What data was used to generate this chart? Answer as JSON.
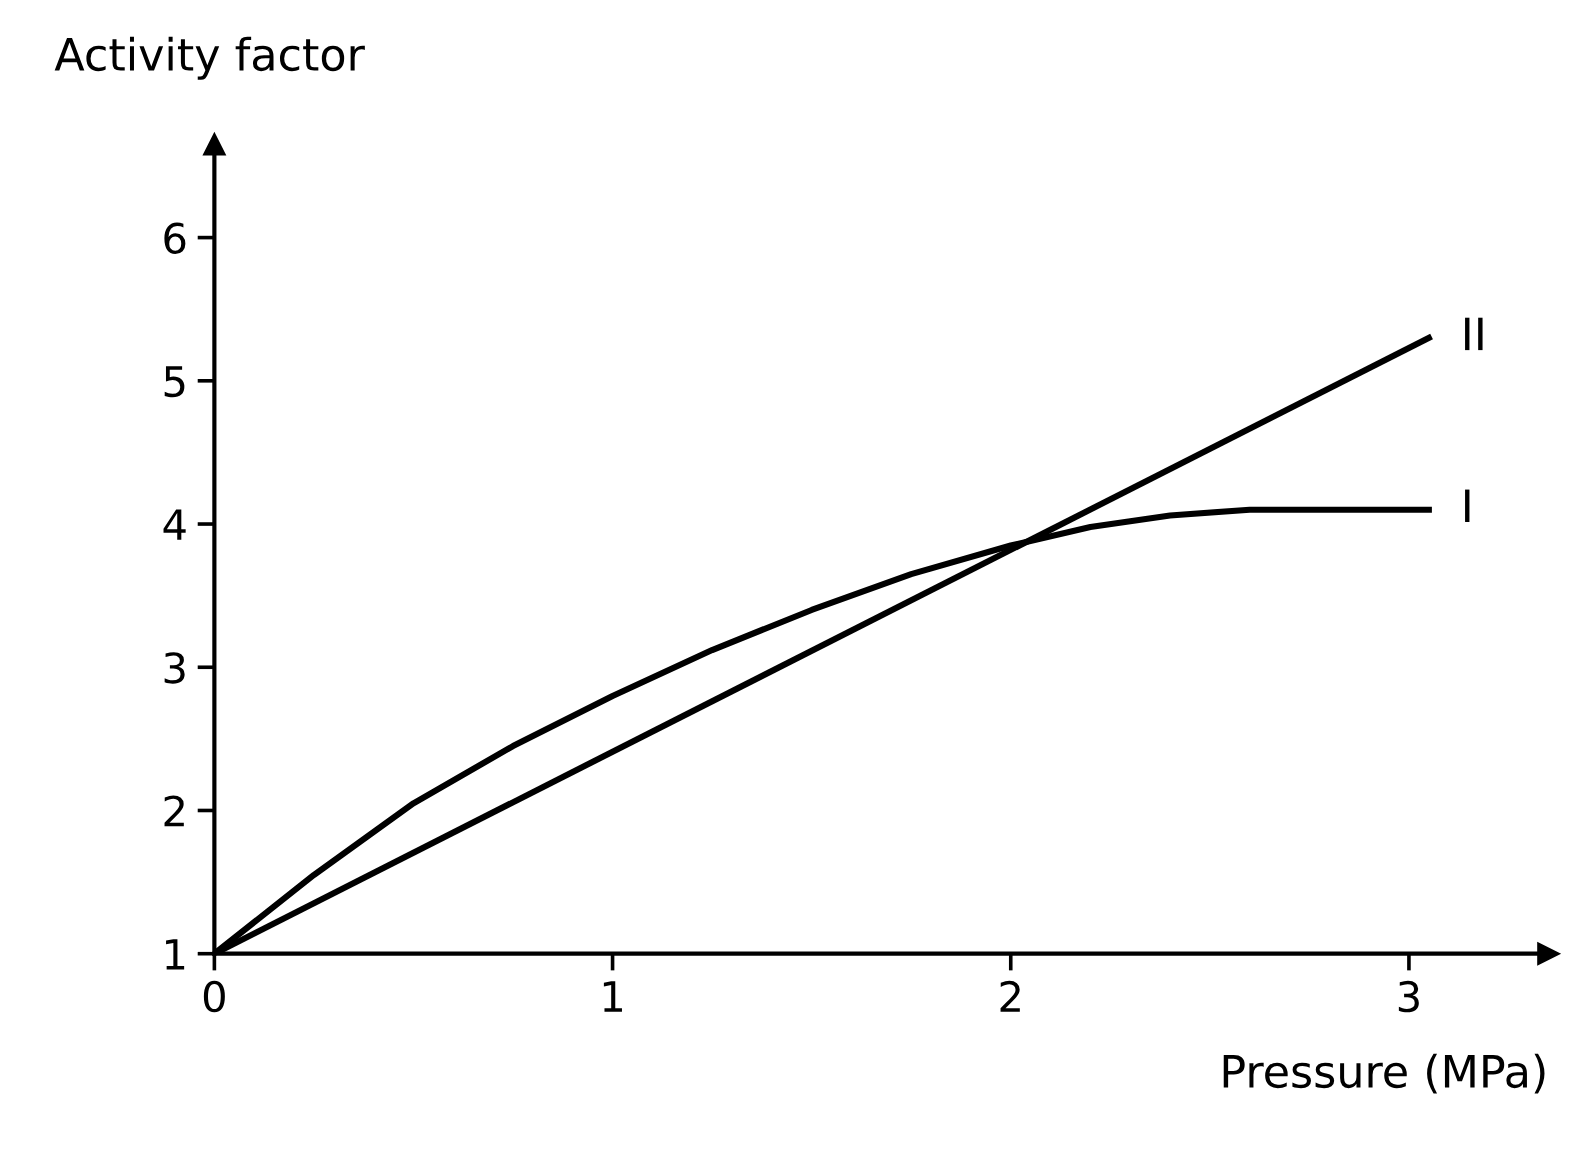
{
  "chart_data": {
    "type": "line",
    "xlabel": "Pressure (MPa)",
    "ylabel": "Activity factor",
    "xlim": [
      0,
      3.35
    ],
    "ylim": [
      1,
      6.65
    ],
    "xticks": [
      0,
      1,
      2,
      3
    ],
    "yticks": [
      1,
      2,
      3,
      4,
      5,
      6
    ],
    "grid": false,
    "legend": false,
    "marker": "none",
    "line_style": "solid",
    "series": [
      {
        "name": "I",
        "color": "#000000",
        "x": [
          0,
          0.25,
          0.5,
          0.75,
          1,
          1.25,
          1.5,
          1.75,
          2,
          2.2,
          2.4,
          2.6,
          2.8,
          3.05
        ],
        "values": [
          1,
          1.55,
          2.05,
          2.45,
          2.8,
          3.12,
          3.4,
          3.65,
          3.85,
          3.98,
          4.06,
          4.1,
          4.1,
          4.1
        ]
      },
      {
        "name": "II",
        "color": "#000000",
        "x": [
          0,
          3.05
        ],
        "values": [
          1,
          5.3
        ]
      }
    ]
  }
}
